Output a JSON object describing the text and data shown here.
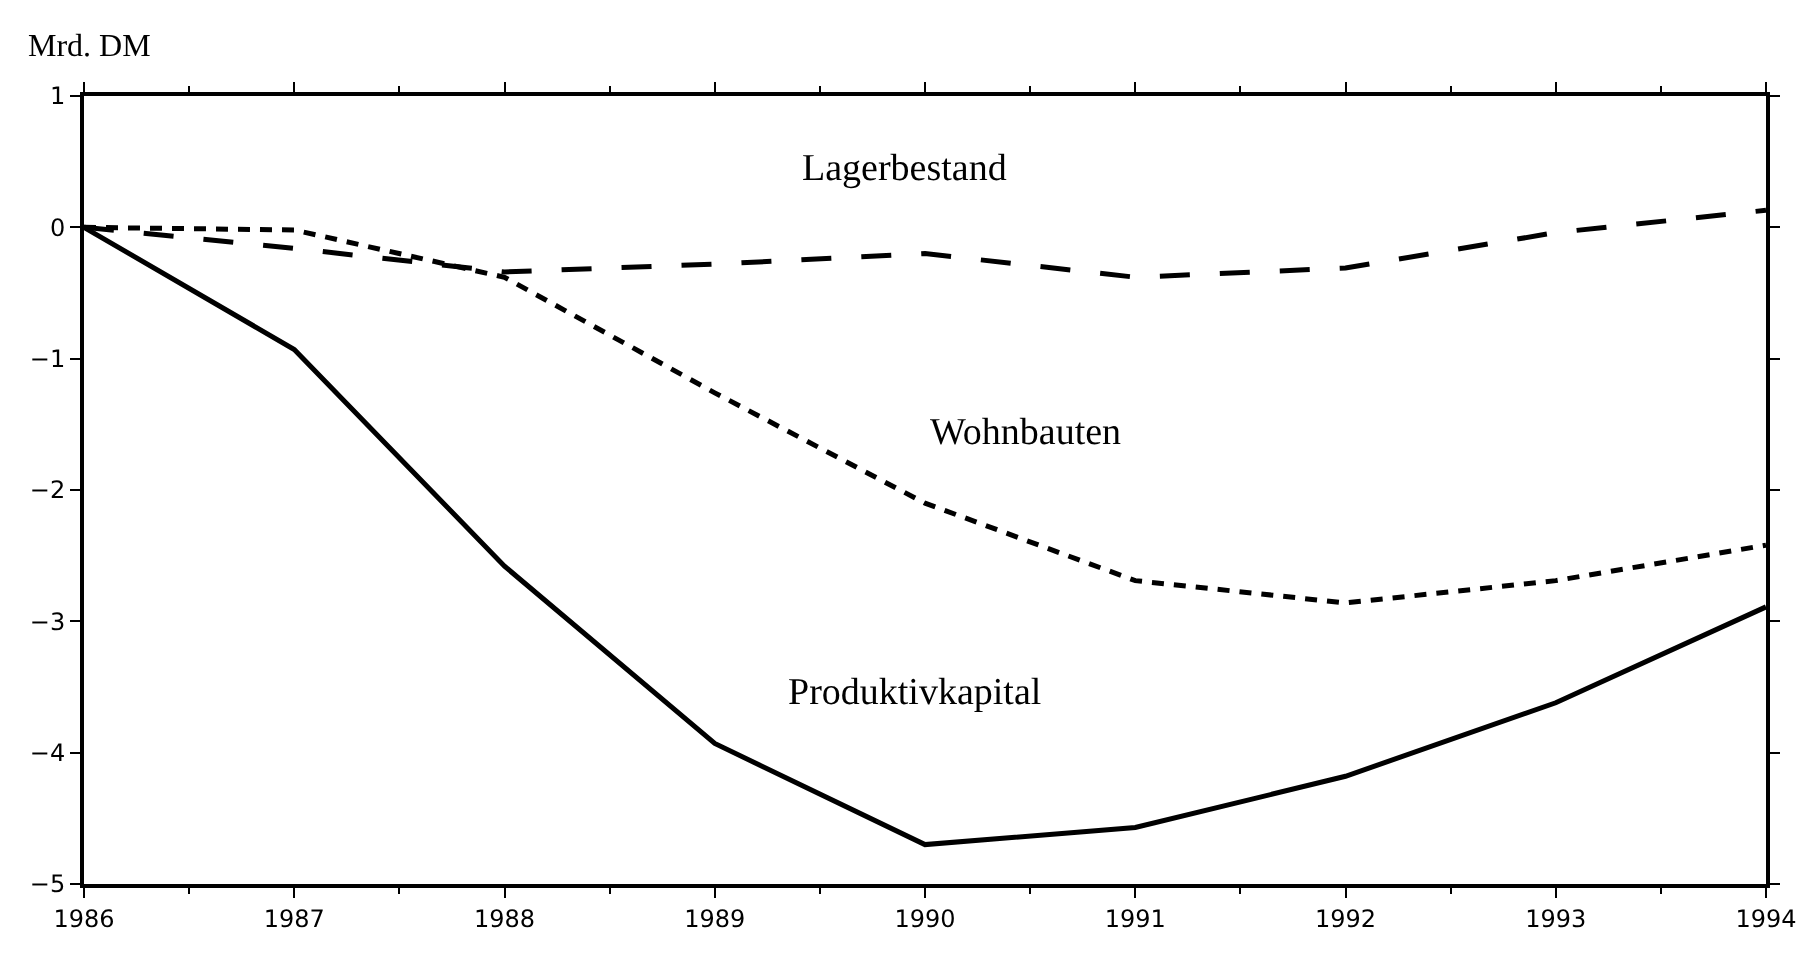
{
  "chart_data": {
    "type": "line",
    "ylabel": "Mrd. DM",
    "x": [
      1986,
      1987,
      1988,
      1989,
      1990,
      1991,
      1992,
      1993,
      1994
    ],
    "xlim": [
      1986,
      1994
    ],
    "xticks": [
      1986,
      1987,
      1988,
      1989,
      1990,
      1991,
      1992,
      1993,
      1994
    ],
    "ylim": [
      -5,
      1
    ],
    "yticks": [
      {
        "value": 1,
        "label": "1"
      },
      {
        "value": 0,
        "label": "0"
      },
      {
        "value": -1,
        "label": "−1"
      },
      {
        "value": -2,
        "label": "−2"
      },
      {
        "value": -3,
        "label": "−3"
      },
      {
        "value": -4,
        "label": "−4"
      },
      {
        "value": -5,
        "label": "−5"
      }
    ],
    "legend": false,
    "series": [
      {
        "name": "Lagerbestand",
        "color": "#000000",
        "line_style": "dashed",
        "values": [
          0,
          -0.16,
          -0.34,
          -0.28,
          -0.2,
          -0.38,
          -0.31,
          -0.04,
          0.13
        ]
      },
      {
        "name": "Wohnbauten",
        "color": "#000000",
        "line_style": "dashed",
        "values": [
          0,
          -0.02,
          -0.38,
          -1.26,
          -2.1,
          -2.69,
          -2.86,
          -2.69,
          -2.42
        ]
      },
      {
        "name": "Produktivkapital",
        "color": "#000000",
        "line_style": "solid",
        "values": [
          0,
          -0.93,
          -2.58,
          -3.93,
          -4.7,
          -4.57,
          -4.18,
          -3.62,
          -2.89
        ]
      }
    ]
  }
}
